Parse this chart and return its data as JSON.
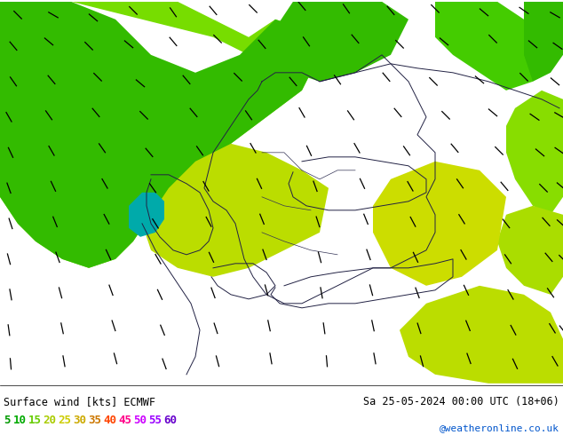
{
  "title_left": "Surface wind [kts] ECMWF",
  "title_right": "Sa 25-05-2024 00:00 UTC (18+06)",
  "credit": "@weatheronline.co.uk",
  "legend_values": [
    5,
    10,
    15,
    20,
    25,
    30,
    35,
    40,
    45,
    50,
    55,
    60
  ],
  "legend_text_colors": [
    "#009900",
    "#00aa00",
    "#66cc00",
    "#aacc00",
    "#cccc00",
    "#ccaa00",
    "#cc7700",
    "#ff4400",
    "#ff0088",
    "#cc00ff",
    "#9900ff",
    "#6600cc"
  ],
  "figsize": [
    6.34,
    4.9
  ],
  "dpi": 100,
  "bg_color": "#ffffff",
  "map_bg_color": "#e8d800",
  "green_dark": "#22aa00",
  "green_mid": "#66dd00",
  "green_light": "#aaee00",
  "yellow_mid": "#ddcc00",
  "yellow_light": "#eedd00",
  "teal": "#00aaaa",
  "border_color": "#333355",
  "arrow_color": "#000000",
  "bottom_bg": "#ffffff",
  "bottom_line_color": "#000000"
}
